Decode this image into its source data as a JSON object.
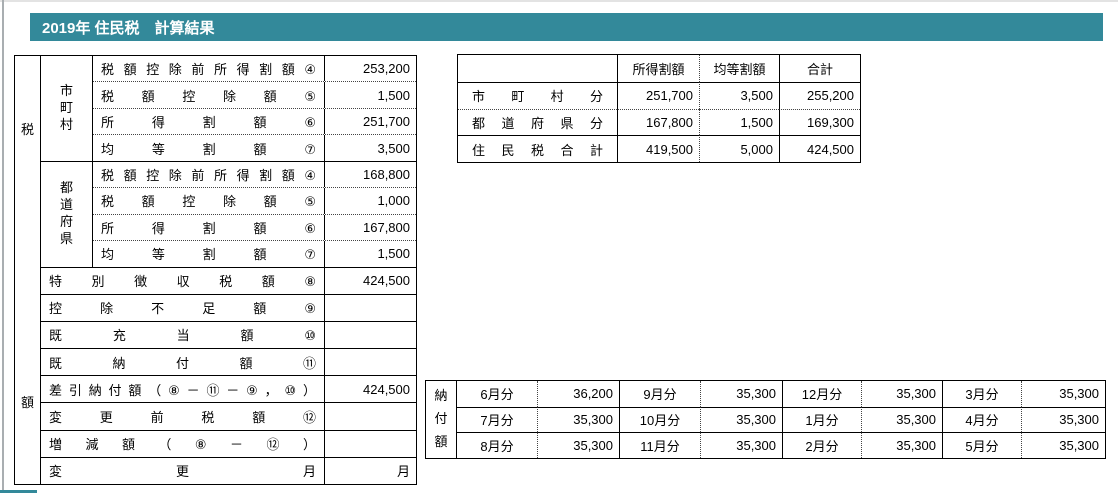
{
  "title": "2019年 住民税　計算結果",
  "colors": {
    "accent": "#33899A"
  },
  "left_table": {
    "side_label_top": "税",
    "side_label_bottom": "額",
    "groups": [
      {
        "label": "市町村",
        "rows": [
          {
            "label": "税額控除前所得割額④",
            "value": "253,200"
          },
          {
            "label": "税額控除額⑤",
            "value": "1,500"
          },
          {
            "label": "所得割額⑥",
            "value": "251,700"
          },
          {
            "label": "均等割額⑦",
            "value": "3,500"
          }
        ]
      },
      {
        "label": "都道府県",
        "rows": [
          {
            "label": "税額控除前所得割額④",
            "value": "168,800"
          },
          {
            "label": "税額控除額⑤",
            "value": "1,000"
          },
          {
            "label": "所得割額⑥",
            "value": "167,800"
          },
          {
            "label": "均等割額⑦",
            "value": "1,500"
          }
        ]
      }
    ],
    "rows": [
      {
        "label": "特別徴収税額⑧",
        "value": "424,500"
      },
      {
        "label": "控除不足額⑨",
        "value": ""
      },
      {
        "label": "既充当額⑩",
        "value": ""
      },
      {
        "label": "既納付額⑪",
        "value": ""
      },
      {
        "label": "差引納付額（⑧－⑪－⑨，⑩）",
        "value": "424,500"
      },
      {
        "label": "変更前税額⑫",
        "value": ""
      },
      {
        "label": "増減額（⑧－⑫）",
        "value": ""
      },
      {
        "label": "変更月",
        "value": "月"
      }
    ]
  },
  "summary_table": {
    "headers": {
      "corner": "",
      "income": "所得割額",
      "per_capita": "均等割額",
      "total": "合計"
    },
    "rows": [
      {
        "label": "市町村分",
        "income": "251,700",
        "per_capita": "3,500",
        "total": "255,200"
      },
      {
        "label": "都道府県分",
        "income": "167,800",
        "per_capita": "1,500",
        "total": "169,300"
      },
      {
        "label": "住民税合計",
        "income": "419,500",
        "per_capita": "5,000",
        "total": "424,500"
      }
    ]
  },
  "payment_table": {
    "side_label": "納付額",
    "rows": [
      [
        {
          "month": "6月分",
          "amount": "36,200"
        },
        {
          "month": "9月分",
          "amount": "35,300"
        },
        {
          "month": "12月分",
          "amount": "35,300"
        },
        {
          "month": "3月分",
          "amount": "35,300"
        }
      ],
      [
        {
          "month": "7月分",
          "amount": "35,300"
        },
        {
          "month": "10月分",
          "amount": "35,300"
        },
        {
          "month": "1月分",
          "amount": "35,300"
        },
        {
          "month": "4月分",
          "amount": "35,300"
        }
      ],
      [
        {
          "month": "8月分",
          "amount": "35,300"
        },
        {
          "month": "11月分",
          "amount": "35,300"
        },
        {
          "month": "2月分",
          "amount": "35,300"
        },
        {
          "month": "5月分",
          "amount": "35,300"
        }
      ]
    ]
  }
}
